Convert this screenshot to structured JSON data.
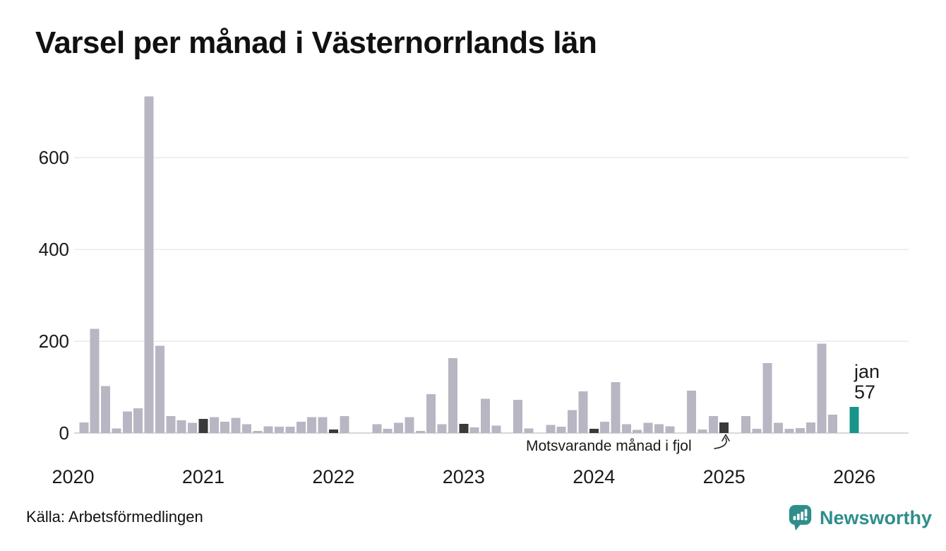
{
  "title": "Varsel per månad i Västernorrlands län",
  "footer": {
    "source": "Källa: Arbetsförmedlingen"
  },
  "branding": {
    "wordmark": "Newsworthy",
    "logo_icon": "newsworthy-bubble-chart-icon",
    "color": "#2f8e8b"
  },
  "annotation": {
    "text": "Motsvarande månad i fjol"
  },
  "latest_label": {
    "line1": "jan",
    "line2": "57"
  },
  "colors": {
    "bar": "#b8b6c2",
    "highlight_dark": "#3a3a3a",
    "highlight_teal": "#18948a",
    "grid": "#e9e9ed",
    "zero_line": "#d8d8dc",
    "text": "#1a1a1a"
  },
  "chart_data": {
    "type": "bar",
    "title": "Varsel per månad i Västernorrlands län",
    "xlabel": "",
    "ylabel": "",
    "ylim": [
      0,
      740
    ],
    "yticks": [
      0,
      200,
      400,
      600
    ],
    "grid": "horizontal",
    "legend": "none",
    "x_unit": "month",
    "start_month": "2020-01",
    "end_month": "2026-01",
    "years": [
      2020,
      2021,
      2022,
      2023,
      2024,
      2025,
      2026
    ],
    "month_order": [
      "jan",
      "feb",
      "mar",
      "apr",
      "maj",
      "jun",
      "jul",
      "aug",
      "sep",
      "okt",
      "nov",
      "dec"
    ],
    "monthly_values": [
      0,
      23,
      227,
      102,
      10,
      47,
      54,
      733,
      190,
      37,
      28,
      22,
      31,
      35,
      25,
      33,
      19,
      5,
      15,
      14,
      14,
      25,
      35,
      35,
      8,
      37,
      0,
      0,
      19,
      9,
      22,
      35,
      5,
      85,
      19,
      163,
      20,
      12,
      75,
      16,
      0,
      72,
      10,
      0,
      18,
      14,
      50,
      91,
      9,
      25,
      111,
      19,
      7,
      22,
      19,
      15,
      0,
      92,
      8,
      37,
      23,
      0,
      37,
      9,
      152,
      22,
      9,
      11,
      23,
      195,
      40,
      0,
      57
    ],
    "highlight": {
      "dark_indices": [
        12,
        24,
        36,
        48,
        60
      ],
      "dark_meaning": "Motsvarande månad i fjol",
      "teal_index": 72,
      "teal_value_label": "jan 57"
    }
  }
}
